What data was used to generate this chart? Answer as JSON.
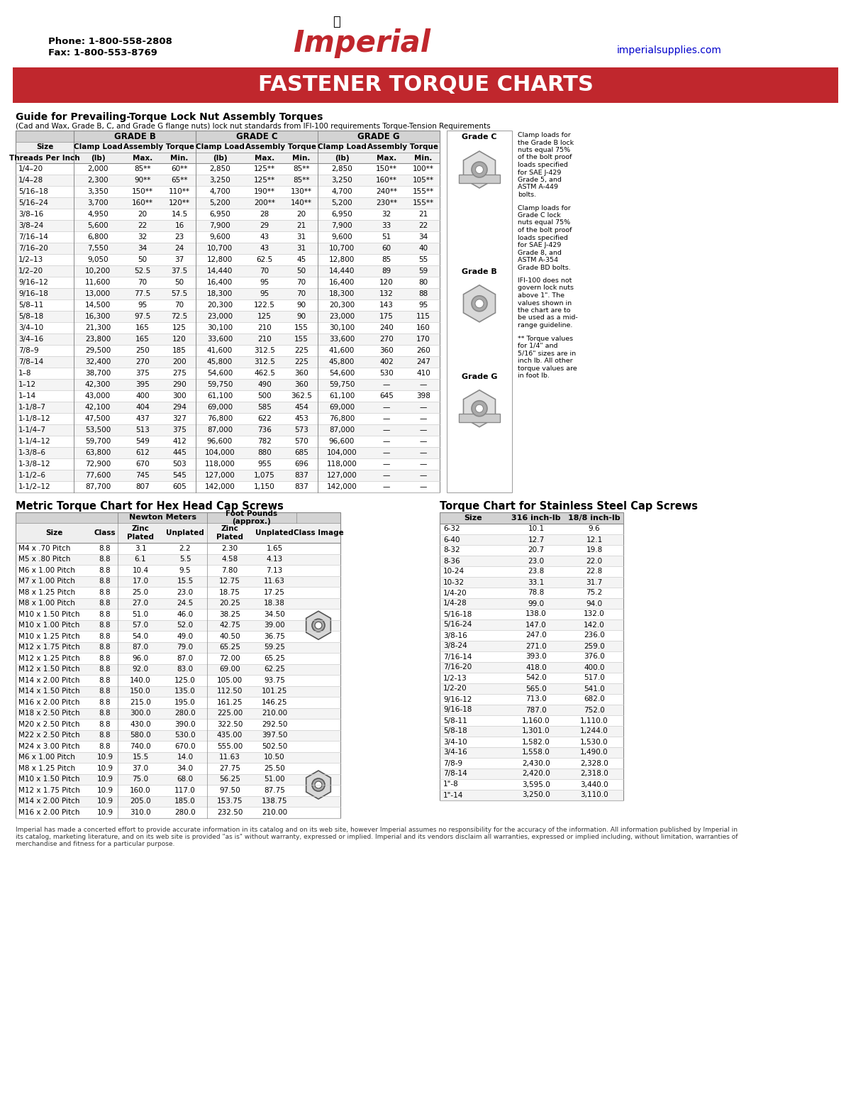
{
  "title": "FASTENER TORQUE CHARTS",
  "title_bg": "#C0272D",
  "title_color": "#FFFFFF",
  "phone": "Phone: 1-800-558-2808",
  "fax": "Fax: 1-800-553-8769",
  "website": "imperialsupplies.com",
  "section1_title": "Guide for Prevailing-Torque Lock Nut Assembly Torques",
  "section1_subtitle": "(Cad and Wax, Grade B, C, and Grade G flange nuts) lock nut standards from IFI-100 requirements Torque-Tension Requirements",
  "lock_nut_data": [
    [
      "1/4–20",
      "2,000",
      "85**",
      "60**",
      "2,850",
      "125**",
      "85**",
      "2,850",
      "150**",
      "100**"
    ],
    [
      "1/4–28",
      "2,300",
      "90**",
      "65**",
      "3,250",
      "125**",
      "85**",
      "3,250",
      "160**",
      "105**"
    ],
    [
      "5/16–18",
      "3,350",
      "150**",
      "110**",
      "4,700",
      "190**",
      "130**",
      "4,700",
      "240**",
      "155**"
    ],
    [
      "5/16–24",
      "3,700",
      "160**",
      "120**",
      "5,200",
      "200**",
      "140**",
      "5,200",
      "230**",
      "155**"
    ],
    [
      "3/8–16",
      "4,950",
      "20",
      "14.5",
      "6,950",
      "28",
      "20",
      "6,950",
      "32",
      "21"
    ],
    [
      "3/8–24",
      "5,600",
      "22",
      "16",
      "7,900",
      "29",
      "21",
      "7,900",
      "33",
      "22"
    ],
    [
      "7/16–14",
      "6,800",
      "32",
      "23",
      "9,600",
      "43",
      "31",
      "9,600",
      "51",
      "34"
    ],
    [
      "7/16–20",
      "7,550",
      "34",
      "24",
      "10,700",
      "43",
      "31",
      "10,700",
      "60",
      "40"
    ],
    [
      "1/2–13",
      "9,050",
      "50",
      "37",
      "12,800",
      "62.5",
      "45",
      "12,800",
      "85",
      "55"
    ],
    [
      "1/2–20",
      "10,200",
      "52.5",
      "37.5",
      "14,440",
      "70",
      "50",
      "14,440",
      "89",
      "59"
    ],
    [
      "9/16–12",
      "11,600",
      "70",
      "50",
      "16,400",
      "95",
      "70",
      "16,400",
      "120",
      "80"
    ],
    [
      "9/16–18",
      "13,000",
      "77.5",
      "57.5",
      "18,300",
      "95",
      "70",
      "18,300",
      "132",
      "88"
    ],
    [
      "5/8–11",
      "14,500",
      "95",
      "70",
      "20,300",
      "122.5",
      "90",
      "20,300",
      "143",
      "95"
    ],
    [
      "5/8–18",
      "16,300",
      "97.5",
      "72.5",
      "23,000",
      "125",
      "90",
      "23,000",
      "175",
      "115"
    ],
    [
      "3/4–10",
      "21,300",
      "165",
      "125",
      "30,100",
      "210",
      "155",
      "30,100",
      "240",
      "160"
    ],
    [
      "3/4–16",
      "23,800",
      "165",
      "120",
      "33,600",
      "210",
      "155",
      "33,600",
      "270",
      "170"
    ],
    [
      "7/8–9",
      "29,500",
      "250",
      "185",
      "41,600",
      "312.5",
      "225",
      "41,600",
      "360",
      "260"
    ],
    [
      "7/8–14",
      "32,400",
      "270",
      "200",
      "45,800",
      "312.5",
      "225",
      "45,800",
      "402",
      "247"
    ],
    [
      "1–8",
      "38,700",
      "375",
      "275",
      "54,600",
      "462.5",
      "360",
      "54,600",
      "530",
      "410"
    ],
    [
      "1–12",
      "42,300",
      "395",
      "290",
      "59,750",
      "490",
      "360",
      "59,750",
      "—",
      "—"
    ],
    [
      "1–14",
      "43,000",
      "400",
      "300",
      "61,100",
      "500",
      "362.5",
      "61,100",
      "645",
      "398"
    ],
    [
      "1-1/8–7",
      "42,100",
      "404",
      "294",
      "69,000",
      "585",
      "454",
      "69,000",
      "—",
      "—"
    ],
    [
      "1-1/8–12",
      "47,500",
      "437",
      "327",
      "76,800",
      "622",
      "453",
      "76,800",
      "—",
      "—"
    ],
    [
      "1-1/4–7",
      "53,500",
      "513",
      "375",
      "87,000",
      "736",
      "573",
      "87,000",
      "—",
      "—"
    ],
    [
      "1-1/4–12",
      "59,700",
      "549",
      "412",
      "96,600",
      "782",
      "570",
      "96,600",
      "—",
      "—"
    ],
    [
      "1-3/8–6",
      "63,800",
      "612",
      "445",
      "104,000",
      "880",
      "685",
      "104,000",
      "—",
      "—"
    ],
    [
      "1-3/8–12",
      "72,900",
      "670",
      "503",
      "118,000",
      "955",
      "696",
      "118,000",
      "—",
      "—"
    ],
    [
      "1-1/2–6",
      "77,600",
      "745",
      "545",
      "127,000",
      "1,075",
      "837",
      "127,000",
      "—",
      "—"
    ],
    [
      "1-1/2–12",
      "87,700",
      "807",
      "605",
      "142,000",
      "1,150",
      "837",
      "142,000",
      "—",
      "—"
    ]
  ],
  "metric_data": [
    [
      "M4 x .70 Pitch",
      "8.8",
      "3.1",
      "2.2",
      "2.30",
      "1.65"
    ],
    [
      "M5 x .80 Pitch",
      "8.8",
      "6.1",
      "5.5",
      "4.58",
      "4.13"
    ],
    [
      "M6 x 1.00 Pitch",
      "8.8",
      "10.4",
      "9.5",
      "7.80",
      "7.13"
    ],
    [
      "M7 x 1.00 Pitch",
      "8.8",
      "17.0",
      "15.5",
      "12.75",
      "11.63"
    ],
    [
      "M8 x 1.25 Pitch",
      "8.8",
      "25.0",
      "23.0",
      "18.75",
      "17.25"
    ],
    [
      "M8 x 1.00 Pitch",
      "8.8",
      "27.0",
      "24.5",
      "20.25",
      "18.38"
    ],
    [
      "M10 x 1.50 Pitch",
      "8.8",
      "51.0",
      "46.0",
      "38.25",
      "34.50"
    ],
    [
      "M10 x 1.00 Pitch",
      "8.8",
      "57.0",
      "52.0",
      "42.75",
      "39.00"
    ],
    [
      "M10 x 1.25 Pitch",
      "8.8",
      "54.0",
      "49.0",
      "40.50",
      "36.75"
    ],
    [
      "M12 x 1.75 Pitch",
      "8.8",
      "87.0",
      "79.0",
      "65.25",
      "59.25"
    ],
    [
      "M12 x 1.25 Pitch",
      "8.8",
      "96.0",
      "87.0",
      "72.00",
      "65.25"
    ],
    [
      "M12 x 1.50 Pitch",
      "8.8",
      "92.0",
      "83.0",
      "69.00",
      "62.25"
    ],
    [
      "M14 x 2.00 Pitch",
      "8.8",
      "140.0",
      "125.0",
      "105.00",
      "93.75"
    ],
    [
      "M14 x 1.50 Pitch",
      "8.8",
      "150.0",
      "135.0",
      "112.50",
      "101.25"
    ],
    [
      "M16 x 2.00 Pitch",
      "8.8",
      "215.0",
      "195.0",
      "161.25",
      "146.25"
    ],
    [
      "M18 x 2.50 Pitch",
      "8.8",
      "300.0",
      "280.0",
      "225.00",
      "210.00"
    ],
    [
      "M20 x 2.50 Pitch",
      "8.8",
      "430.0",
      "390.0",
      "322.50",
      "292.50"
    ],
    [
      "M22 x 2.50 Pitch",
      "8.8",
      "580.0",
      "530.0",
      "435.00",
      "397.50"
    ],
    [
      "M24 x 3.00 Pitch",
      "8.8",
      "740.0",
      "670.0",
      "555.00",
      "502.50"
    ],
    [
      "M6 x 1.00 Pitch",
      "10.9",
      "15.5",
      "14.0",
      "11.63",
      "10.50"
    ],
    [
      "M8 x 1.25 Pitch",
      "10.9",
      "37.0",
      "34.0",
      "27.75",
      "25.50"
    ],
    [
      "M10 x 1.50 Pitch",
      "10.9",
      "75.0",
      "68.0",
      "56.25",
      "51.00"
    ],
    [
      "M12 x 1.75 Pitch",
      "10.9",
      "160.0",
      "117.0",
      "97.50",
      "87.75"
    ],
    [
      "M14 x 2.00 Pitch",
      "10.9",
      "205.0",
      "185.0",
      "153.75",
      "138.75"
    ],
    [
      "M16 x 2.00 Pitch",
      "10.9",
      "310.0",
      "280.0",
      "232.50",
      "210.00"
    ]
  ],
  "stainless_data": [
    [
      "6-32",
      "10.1",
      "9.6"
    ],
    [
      "6-40",
      "12.7",
      "12.1"
    ],
    [
      "8-32",
      "20.7",
      "19.8"
    ],
    [
      "8-36",
      "23.0",
      "22.0"
    ],
    [
      "10-24",
      "23.8",
      "22.8"
    ],
    [
      "10-32",
      "33.1",
      "31.7"
    ],
    [
      "1/4-20",
      "78.8",
      "75.2"
    ],
    [
      "1/4-28",
      "99.0",
      "94.0"
    ],
    [
      "5/16-18",
      "138.0",
      "132.0"
    ],
    [
      "5/16-24",
      "147.0",
      "142.0"
    ],
    [
      "3/8-16",
      "247.0",
      "236.0"
    ],
    [
      "3/8-24",
      "271.0",
      "259.0"
    ],
    [
      "7/16-14",
      "393.0",
      "376.0"
    ],
    [
      "7/16-20",
      "418.0",
      "400.0"
    ],
    [
      "1/2-13",
      "542.0",
      "517.0"
    ],
    [
      "1/2-20",
      "565.0",
      "541.0"
    ],
    [
      "9/16-12",
      "713.0",
      "682.0"
    ],
    [
      "9/16-18",
      "787.0",
      "752.0"
    ],
    [
      "5/8-11",
      "1,160.0",
      "1,110.0"
    ],
    [
      "5/8-18",
      "1,301.0",
      "1,244.0"
    ],
    [
      "3/4-10",
      "1,582.0",
      "1,530.0"
    ],
    [
      "3/4-16",
      "1,558.0",
      "1,490.0"
    ],
    [
      "7/8-9",
      "2,430.0",
      "2,328.0"
    ],
    [
      "7/8-14",
      "2,420.0",
      "2,318.0"
    ],
    [
      "1\"-8",
      "3,595.0",
      "3,440.0"
    ],
    [
      "1\"-14",
      "3,250.0",
      "3,110.0"
    ]
  ],
  "note1_lines": [
    "Clamp loads for",
    "the Grade B lock",
    "nuts equal 75%",
    "of the bolt proof",
    "loads specified",
    "for SAE J-429",
    "Grade 5, and",
    "ASTM A-449",
    "bolts."
  ],
  "note2_lines": [
    "Clamp loads for",
    "Grade C lock",
    "nuts equal 75%",
    "of the bolt proof",
    "loads specified",
    "for SAE J-429",
    "Grade 8, and",
    "ASTM A-354",
    "Grade BD bolts."
  ],
  "note3_lines": [
    "IFI-100 does not",
    "govern lock nuts",
    "above 1\". The",
    "values shown in",
    "the chart are to",
    "be used as a mid-",
    "range guideline."
  ],
  "note4_lines": [
    "** Torque values",
    "for 1/4\" and",
    "5/16\" sizes are in",
    "inch lb. All other",
    "torque values are",
    "in foot lb."
  ],
  "footer_lines": [
    "Imperial has made a concerted effort to provide accurate information in its catalog and on its web site, however Imperial assumes no responsibility for the accuracy of the information. All information published by Imperial in",
    "its catalog, marketing literature, and on its web site is provided \"as is\" without warranty, expressed or implied. Imperial and its vendors disclaim all warranties, expressed or implied including, without limitation, warranties of",
    "merchandise and fitness for a particular purpose."
  ]
}
